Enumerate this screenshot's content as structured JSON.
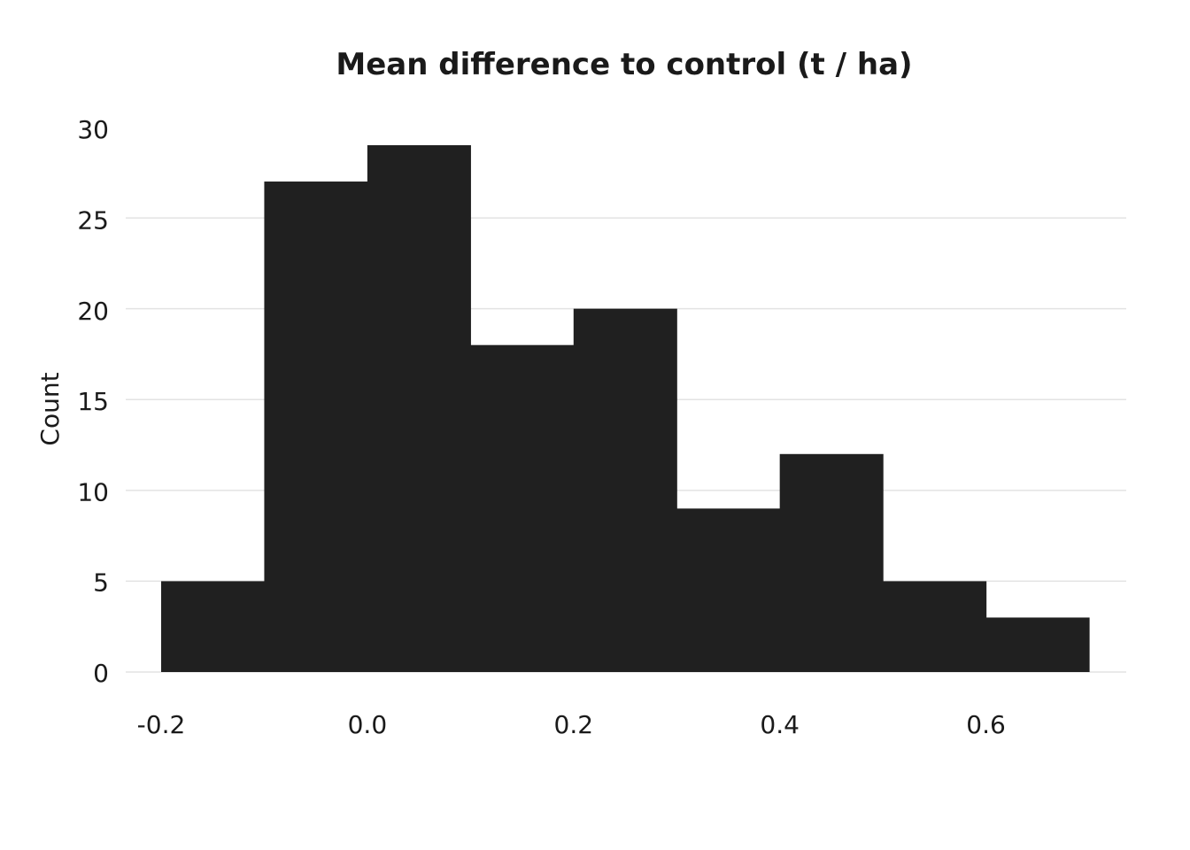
{
  "chart_data": {
    "type": "bar",
    "title": "Mean difference to control (t / ha)",
    "xlabel": "",
    "ylabel": "Count",
    "bins": [
      {
        "x0": -0.2,
        "x1": -0.1,
        "count": 5
      },
      {
        "x0": -0.1,
        "x1": 0.0,
        "count": 27
      },
      {
        "x0": 0.0,
        "x1": 0.1,
        "count": 29
      },
      {
        "x0": 0.1,
        "x1": 0.2,
        "count": 18
      },
      {
        "x0": 0.2,
        "x1": 0.3,
        "count": 20
      },
      {
        "x0": 0.3,
        "x1": 0.4,
        "count": 9
      },
      {
        "x0": 0.4,
        "x1": 0.5,
        "count": 12
      },
      {
        "x0": 0.5,
        "x1": 0.6,
        "count": 5
      },
      {
        "x0": 0.6,
        "x1": 0.7,
        "count": 3
      }
    ],
    "xticks": [
      -0.2,
      0.0,
      0.2,
      0.4,
      0.6
    ],
    "xtick_labels": [
      "-0.2",
      "0.0",
      "0.2",
      "0.4",
      "0.6"
    ],
    "yticks": [
      0,
      5,
      10,
      15,
      20,
      25,
      30
    ],
    "ytick_labels": [
      "0",
      "5",
      "10",
      "15",
      "20",
      "25",
      "30"
    ],
    "xlim": [
      -0.2,
      0.7
    ],
    "ylim": [
      0,
      29
    ],
    "grid": true,
    "bar_color": "#202020"
  }
}
